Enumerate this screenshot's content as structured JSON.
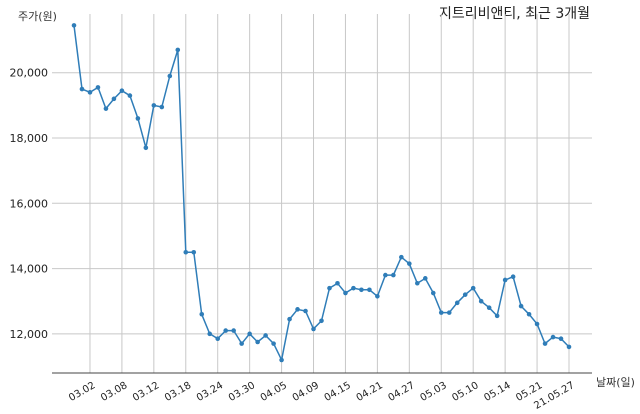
{
  "chart_data": {
    "type": "line",
    "title": "지트리비앤티, 최근 3개월",
    "ylabel": "주가(원)",
    "xlabel": "날짜(일)",
    "ylim": [
      10800,
      21800
    ],
    "yticks": [
      12000,
      14000,
      16000,
      18000,
      20000
    ],
    "ytick_labels": [
      "12,000",
      "14,000",
      "16,000",
      "18,000",
      "20,000"
    ],
    "grid": true,
    "colors": {
      "line": "#2f7db8",
      "grid": "#c8c8c8",
      "axis": "#444444"
    },
    "xtick_labels": [
      {
        "index": 2,
        "label": "03.02"
      },
      {
        "index": 6,
        "label": "03.08"
      },
      {
        "index": 10,
        "label": "03.12"
      },
      {
        "index": 14,
        "label": "03.18"
      },
      {
        "index": 18,
        "label": "03.24"
      },
      {
        "index": 22,
        "label": "03.30"
      },
      {
        "index": 26,
        "label": "04.05"
      },
      {
        "index": 30,
        "label": "04.09"
      },
      {
        "index": 34,
        "label": "04.15"
      },
      {
        "index": 38,
        "label": "04.21"
      },
      {
        "index": 42,
        "label": "04.27"
      },
      {
        "index": 46,
        "label": "05.03"
      },
      {
        "index": 50,
        "label": "05.10"
      },
      {
        "index": 54,
        "label": "05.14"
      },
      {
        "index": 58,
        "label": "05.21"
      },
      {
        "index": 62,
        "label": "21.05.27"
      }
    ],
    "values": [
      21450,
      19500,
      19400,
      19550,
      18900,
      19200,
      19450,
      19300,
      18600,
      17700,
      19000,
      18950,
      19900,
      20700,
      14500,
      14500,
      12600,
      12000,
      11850,
      12100,
      12100,
      11700,
      12000,
      11750,
      11950,
      11700,
      11200,
      12450,
      12750,
      12700,
      12150,
      12400,
      13400,
      13550,
      13250,
      13400,
      13350,
      13350,
      13150,
      13800,
      13800,
      14350,
      14150,
      13550,
      13700,
      13250,
      12650,
      12650,
      12950,
      13200,
      13400,
      13000,
      12800,
      12550,
      13650,
      13750,
      12850,
      12600,
      12300,
      11700,
      11900,
      11850,
      11600
    ]
  }
}
